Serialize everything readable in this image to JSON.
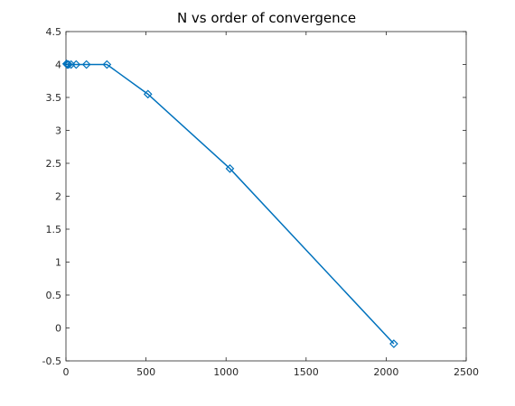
{
  "chart_data": {
    "type": "line",
    "title": "N vs order of convergence",
    "xlabel": "",
    "ylabel": "",
    "xlim": [
      0,
      2500
    ],
    "ylim": [
      -0.5,
      4.5
    ],
    "xticks": [
      0,
      500,
      1000,
      1500,
      2000,
      2500
    ],
    "yticks": [
      -0.5,
      0,
      0.5,
      1,
      1.5,
      2,
      2.5,
      3,
      3.5,
      4,
      4.5
    ],
    "xtick_labels": [
      "0",
      "500",
      "1000",
      "1500",
      "2000",
      "2500"
    ],
    "ytick_labels": [
      "-0.5",
      "0",
      "0.5",
      "1",
      "1.5",
      "2",
      "2.5",
      "3",
      "3.5",
      "4",
      "4.5"
    ],
    "grid": false,
    "legend": "none",
    "marker": "diamond",
    "color": "#0072BD",
    "series": [
      {
        "x": [
          4,
          8,
          16,
          32,
          64,
          128,
          256,
          512,
          1024,
          2048
        ],
        "y": [
          4.01,
          4.0,
          4.0,
          4.0,
          4.0,
          4.0,
          4.0,
          3.55,
          2.42,
          -0.24
        ]
      }
    ]
  }
}
